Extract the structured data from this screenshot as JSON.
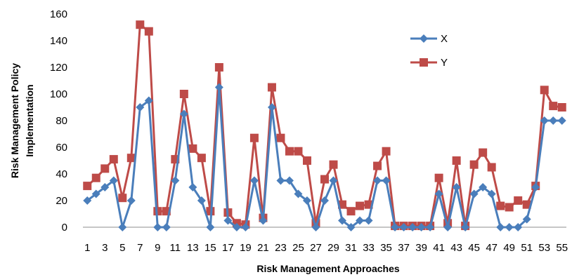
{
  "chart_data": {
    "type": "line",
    "title": "",
    "xlabel": "Risk Management Approaches",
    "ylabel_lines": [
      "Risk Management Policy",
      "Implementation"
    ],
    "ylim": [
      0,
      160
    ],
    "yticks": [
      0,
      20,
      40,
      60,
      80,
      100,
      120,
      140,
      160
    ],
    "grid": false,
    "legend_position": "top-right",
    "x": [
      1,
      2,
      3,
      4,
      5,
      6,
      7,
      8,
      9,
      10,
      11,
      12,
      13,
      14,
      15,
      16,
      17,
      18,
      19,
      20,
      21,
      22,
      23,
      24,
      25,
      26,
      27,
      28,
      29,
      30,
      31,
      32,
      33,
      34,
      35,
      36,
      37,
      38,
      39,
      40,
      41,
      42,
      43,
      44,
      45,
      46,
      47,
      48,
      49,
      50,
      51,
      52,
      53,
      54,
      55
    ],
    "x_tick_labels": [
      "1",
      "3",
      "5",
      "7",
      "9",
      "11",
      "13",
      "15",
      "17",
      "19",
      "21",
      "23",
      "25",
      "27",
      "29",
      "31",
      "33",
      "35",
      "37",
      "39",
      "41",
      "43",
      "45",
      "47",
      "49",
      "51",
      "53",
      "55"
    ],
    "series": [
      {
        "name": "X",
        "color": "#4a7ebb",
        "marker": "diamond",
        "values": [
          20,
          25,
          30,
          35,
          0,
          20,
          90,
          95,
          0,
          0,
          35,
          85,
          30,
          20,
          0,
          105,
          5,
          0,
          0,
          35,
          5,
          90,
          35,
          35,
          25,
          20,
          0,
          20,
          35,
          5,
          0,
          5,
          5,
          35,
          35,
          0,
          0,
          0,
          0,
          0,
          25,
          0,
          30,
          0,
          25,
          30,
          25,
          0,
          0,
          0,
          6,
          30,
          80,
          80,
          80
        ]
      },
      {
        "name": "Y",
        "color": "#be4b48",
        "marker": "square",
        "values": [
          31,
          37,
          44,
          51,
          22,
          52,
          152,
          147,
          12,
          12,
          51,
          100,
          59,
          52,
          12,
          120,
          11,
          3,
          2,
          67,
          7,
          105,
          67,
          57,
          57,
          50,
          3,
          36,
          47,
          17,
          12,
          16,
          17,
          46,
          57,
          1,
          1,
          1,
          1,
          1,
          37,
          3,
          50,
          1,
          47,
          56,
          45,
          16,
          15,
          20,
          17,
          31,
          103,
          91,
          90
        ]
      }
    ]
  }
}
